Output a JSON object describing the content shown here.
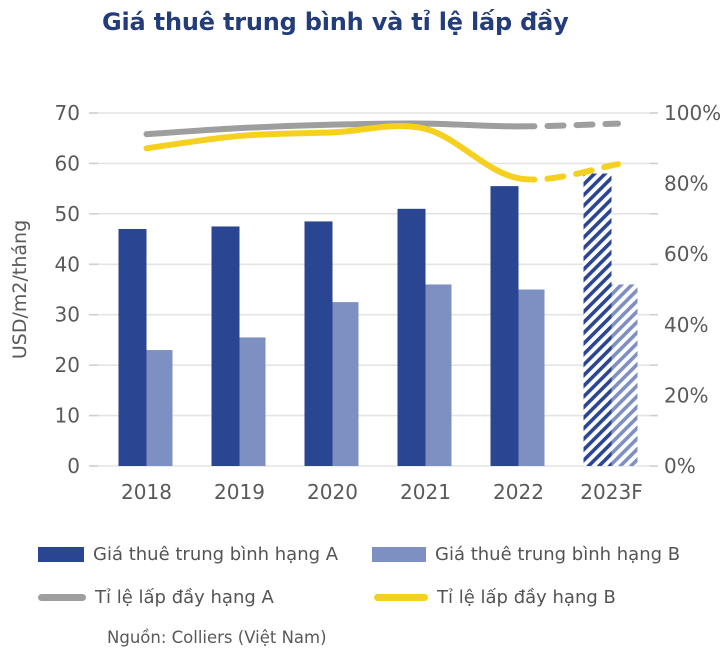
{
  "title": "Giá thuê trung bình và tỉ lệ lấp đầy",
  "source": "Nguồn: Colliers (Việt Nam)",
  "colors": {
    "title_text": "#233D7B",
    "grid": "#E4E4E4",
    "tick": "#CFCFCF",
    "axis_text": "#595959",
    "legend_text": "#545454",
    "bar_a": "#2A4591",
    "bar_b": "#7E90C2",
    "line_a": "#9E9E9E",
    "line_b": "#F6D01F"
  },
  "chart_data": {
    "type": "bar",
    "subtype": "combo bar + line, dual axis",
    "categories": [
      "2018",
      "2019",
      "2020",
      "2021",
      "2022",
      "2023F"
    ],
    "forecast_category": "2023F",
    "forecast_style": "hatched bars and dashed lines",
    "left_axis": {
      "label": "USD/m2/tháng",
      "min": 0,
      "max": 70,
      "ticks": [
        0,
        10,
        20,
        30,
        40,
        50,
        60,
        70
      ]
    },
    "right_axis": {
      "label": "",
      "min": 0,
      "max": 100,
      "unit": "%",
      "ticks": [
        0,
        20,
        40,
        60,
        80,
        100
      ]
    },
    "grid": "horizontal only",
    "legend_position": "bottom-left, two rows",
    "series": [
      {
        "name": "Giá thuê trung bình hạng A",
        "type": "bar",
        "axis": "left",
        "color": "#2A4591",
        "values": [
          47,
          47.5,
          48.5,
          51,
          55.5,
          58
        ],
        "forecast_hatched": true
      },
      {
        "name": "Giá thuê trung bình hạng B",
        "type": "bar",
        "axis": "left",
        "color": "#7E90C2",
        "values": [
          23,
          25.5,
          32.5,
          36,
          35,
          36
        ],
        "forecast_hatched": true
      },
      {
        "name": "Tỉ lệ lấp đầy hạng A",
        "type": "line",
        "axis": "right",
        "color": "#9E9E9E",
        "values": [
          94,
          95.7,
          96.7,
          97,
          96.2,
          97
        ],
        "forecast_dashed": true
      },
      {
        "name": "Tỉ lệ lấp đầy hạng B",
        "type": "line",
        "axis": "right",
        "color": "#F6D01F",
        "values": [
          90,
          93.5,
          94.5,
          95.5,
          81.5,
          85.5
        ],
        "forecast_dashed": true
      }
    ]
  }
}
